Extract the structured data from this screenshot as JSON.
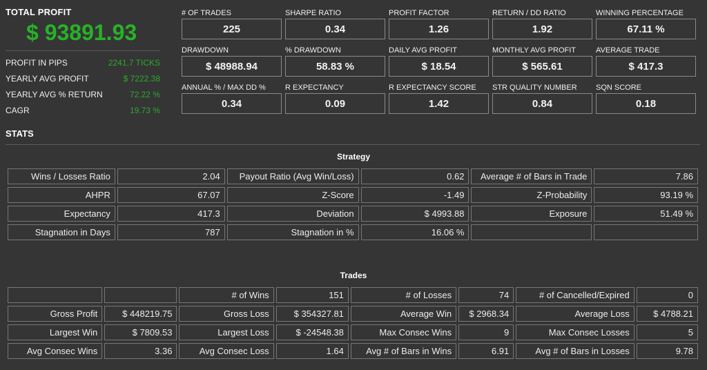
{
  "summary": {
    "title": "TOTAL PROFIT",
    "value": "$ 93891.93",
    "rows": [
      {
        "label": "PROFIT IN PIPS",
        "value": "2241.7 TICKS"
      },
      {
        "label": "YEARLY AVG PROFIT",
        "value": "$ 7222.38"
      },
      {
        "label": "YEARLY AVG % RETURN",
        "value": "72.22 %"
      },
      {
        "label": "CAGR",
        "value": "19.73 %"
      }
    ]
  },
  "metrics": [
    {
      "label": "# OF TRADES",
      "value": "225"
    },
    {
      "label": "SHARPE RATIO",
      "value": "0.34"
    },
    {
      "label": "PROFIT FACTOR",
      "value": "1.26"
    },
    {
      "label": "RETURN / DD RATIO",
      "value": "1.92"
    },
    {
      "label": "WINNING PERCENTAGE",
      "value": "67.11 %"
    },
    {
      "label": "DRAWDOWN",
      "value": "$ 48988.94"
    },
    {
      "label": "% DRAWDOWN",
      "value": "58.83 %"
    },
    {
      "label": "DAILY AVG PROFIT",
      "value": "$ 18.54"
    },
    {
      "label": "MONTHLY AVG PROFIT",
      "value": "$ 565.61"
    },
    {
      "label": "AVERAGE TRADE",
      "value": "$ 417.3"
    },
    {
      "label": "ANNUAL % / MAX DD %",
      "value": "0.34"
    },
    {
      "label": "R EXPECTANCY",
      "value": "0.09"
    },
    {
      "label": "R EXPECTANCY SCORE",
      "value": "1.42"
    },
    {
      "label": "STR QUALITY NUMBER",
      "value": "0.84"
    },
    {
      "label": "SQN SCORE",
      "value": "0.18"
    }
  ],
  "stats": {
    "title": "STATS",
    "strategy": {
      "title": "Strategy",
      "rows": [
        [
          "Wins / Losses Ratio",
          "2.04",
          "Payout Ratio (Avg Win/Loss)",
          "0.62",
          "Average # of Bars in Trade",
          "7.86"
        ],
        [
          "AHPR",
          "67.07",
          "Z-Score",
          "-1.49",
          "Z-Probability",
          "93.19 %"
        ],
        [
          "Expectancy",
          "417.3",
          "Deviation",
          "$ 4993.88",
          "Exposure",
          "51.49 %"
        ],
        [
          "Stagnation in Days",
          "787",
          "Stagnation in %",
          "16.06 %",
          "",
          ""
        ]
      ]
    },
    "trades": {
      "title": "Trades",
      "rows": [
        [
          "",
          "",
          "# of Wins",
          "151",
          "# of Losses",
          "74",
          "# of Cancelled/Expired",
          "0"
        ],
        [
          "Gross Profit",
          "$ 448219.75",
          "Gross Loss",
          "$ 354327.81",
          "Average Win",
          "$ 2968.34",
          "Average Loss",
          "$ 4788.21"
        ],
        [
          "Largest Win",
          "$ 7809.53",
          "Largest Loss",
          "$ -24548.38",
          "Max Consec Wins",
          "9",
          "Max Consec Losses",
          "5"
        ],
        [
          "Avg Consec Wins",
          "3.36",
          "Avg Consec Loss",
          "1.64",
          "Avg # of Bars in Wins",
          "6.91",
          "Avg # of Bars in Losses",
          "9.78"
        ]
      ]
    }
  }
}
